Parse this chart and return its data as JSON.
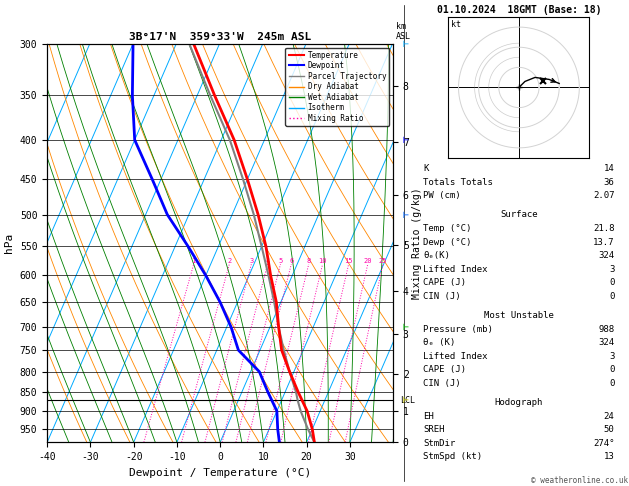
{
  "title_left": "3B°17'N  359°33'W  245m ASL",
  "title_right": "01.10.2024  18GMT (Base: 18)",
  "xlabel": "Dewpoint / Temperature (°C)",
  "ylabel_left": "hPa",
  "ylabel_right_mr": "Mixing Ratio (g/kg)",
  "pressure_levels": [
    300,
    350,
    400,
    450,
    500,
    550,
    600,
    650,
    700,
    750,
    800,
    850,
    900,
    950
  ],
  "pressure_ticks": [
    300,
    350,
    400,
    450,
    500,
    550,
    600,
    650,
    700,
    750,
    800,
    850,
    900,
    950
  ],
  "temp_xticks": [
    -40,
    -30,
    -20,
    -10,
    0,
    10,
    20,
    30
  ],
  "km_ticks": [
    0,
    1,
    2,
    3,
    4,
    5,
    6,
    7,
    8
  ],
  "km_pressures": [
    988,
    900,
    806,
    714,
    628,
    547,
    472,
    403,
    340
  ],
  "lcl_pressure": 871,
  "mixing_ratio_values": [
    1,
    2,
    3,
    4,
    5,
    6,
    8,
    10,
    15,
    20,
    25
  ],
  "temperature_profile": {
    "pressure": [
      988,
      950,
      900,
      850,
      800,
      750,
      700,
      650,
      600,
      550,
      500,
      450,
      400,
      350,
      300
    ],
    "temp": [
      21.8,
      20.0,
      17.0,
      13.0,
      9.0,
      5.0,
      2.0,
      -1.0,
      -5.0,
      -9.0,
      -14.0,
      -20.0,
      -27.0,
      -36.0,
      -46.0
    ]
  },
  "dewpoint_profile": {
    "pressure": [
      988,
      950,
      900,
      850,
      800,
      750,
      700,
      650,
      600,
      550,
      500,
      450,
      400,
      350,
      300
    ],
    "temp": [
      13.7,
      12.0,
      10.0,
      6.0,
      2.0,
      -5.0,
      -9.0,
      -14.0,
      -20.0,
      -27.0,
      -35.0,
      -42.0,
      -50.0,
      -55.0,
      -60.0
    ]
  },
  "parcel_profile": {
    "pressure": [
      988,
      950,
      900,
      871,
      850,
      800,
      750,
      700,
      650,
      600,
      550,
      500,
      450,
      400,
      350,
      300
    ],
    "temp": [
      21.8,
      19.0,
      15.5,
      13.7,
      12.5,
      9.0,
      5.5,
      2.0,
      -1.5,
      -5.5,
      -10.0,
      -15.0,
      -21.0,
      -28.0,
      -37.0,
      -47.0
    ]
  },
  "color_temp": "#ff0000",
  "color_dewp": "#0000ff",
  "color_parcel": "#808080",
  "color_dry_adiabat": "#ff8800",
  "color_wet_adiabat": "#008000",
  "color_isotherm": "#00aaff",
  "color_mixing_ratio": "#ff00aa",
  "stats": {
    "K": 14,
    "Totals_Totals": 36,
    "PW_cm": "2.07",
    "Surface_Temp": "21.8",
    "Surface_Dewp": "13.7",
    "Surface_theta_e": 324,
    "Surface_LI": 3,
    "Surface_CAPE": 0,
    "Surface_CIN": 0,
    "MU_Pressure": 988,
    "MU_theta_e": 324,
    "MU_LI": 3,
    "MU_CAPE": 0,
    "MU_CIN": 0,
    "Hodo_EH": 24,
    "Hodo_SREH": 50,
    "Hodo_StmDir": "274°",
    "Hodo_StmSpd": 13
  },
  "background_color": "#ffffff"
}
